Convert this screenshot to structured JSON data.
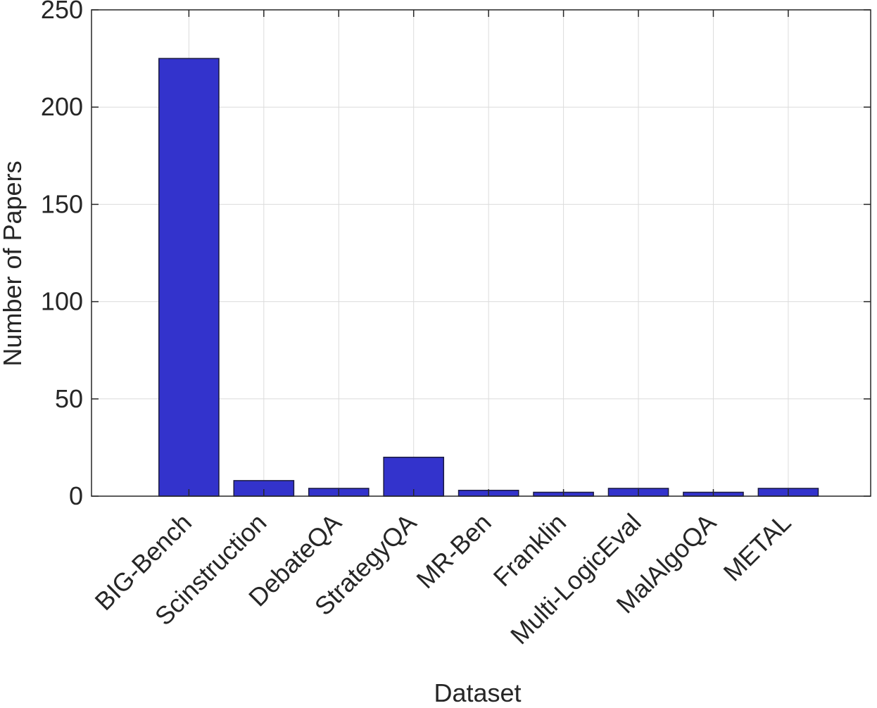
{
  "chart_data": {
    "type": "bar",
    "categories": [
      "BIG-Bench",
      "Scinstruction",
      "DebateQA",
      "StrategyQA",
      "MR-Ben",
      "Franklin",
      "Multi-LogicEval",
      "MalAlgoQA",
      "METAL"
    ],
    "values": [
      225,
      8,
      4,
      20,
      3,
      2,
      4,
      2,
      4
    ],
    "xlabel": "Dataset",
    "ylabel": "Number of Papers",
    "ylim": [
      0,
      250
    ],
    "yticks": [
      0,
      50,
      100,
      150,
      200,
      250
    ],
    "grid": true,
    "bar_color": "#3333cc"
  }
}
